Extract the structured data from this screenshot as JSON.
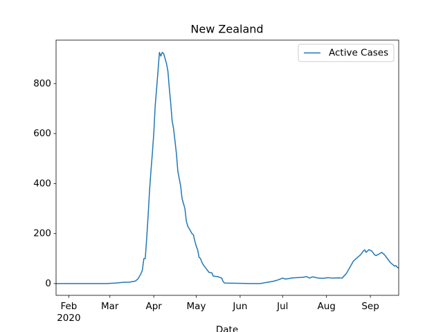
{
  "chart_data": {
    "type": "line",
    "title": "New Zealand",
    "xlabel": "Date",
    "x": [
      "2020-01-23",
      "2020-02-01",
      "2020-02-15",
      "2020-02-29",
      "2020-03-01",
      "2020-03-05",
      "2020-03-10",
      "2020-03-15",
      "2020-03-19",
      "2020-03-21",
      "2020-03-23",
      "2020-03-24",
      "2020-03-25",
      "2020-03-26",
      "2020-03-27",
      "2020-03-28",
      "2020-03-29",
      "2020-03-30",
      "2020-03-31",
      "2020-04-01",
      "2020-04-02",
      "2020-04-03",
      "2020-04-04",
      "2020-04-05",
      "2020-04-06",
      "2020-04-07",
      "2020-04-08",
      "2020-04-09",
      "2020-04-10",
      "2020-04-11",
      "2020-04-12",
      "2020-04-13",
      "2020-04-14",
      "2020-04-15",
      "2020-04-16",
      "2020-04-17",
      "2020-04-18",
      "2020-04-19",
      "2020-04-20",
      "2020-04-21",
      "2020-04-22",
      "2020-04-23",
      "2020-04-24",
      "2020-04-25",
      "2020-04-27",
      "2020-04-28",
      "2020-04-29",
      "2020-04-30",
      "2020-05-01",
      "2020-05-02",
      "2020-05-03",
      "2020-05-04",
      "2020-05-05",
      "2020-05-06",
      "2020-05-08",
      "2020-05-10",
      "2020-05-12",
      "2020-05-13",
      "2020-05-16",
      "2020-05-19",
      "2020-05-20",
      "2020-05-21",
      "2020-06-01",
      "2020-06-08",
      "2020-06-15",
      "2020-06-20",
      "2020-06-25",
      "2020-06-28",
      "2020-07-01",
      "2020-07-03",
      "2020-07-08",
      "2020-07-15",
      "2020-07-18",
      "2020-07-20",
      "2020-07-22",
      "2020-07-24",
      "2020-07-26",
      "2020-07-30",
      "2020-08-02",
      "2020-08-05",
      "2020-08-10",
      "2020-08-12",
      "2020-08-15",
      "2020-08-18",
      "2020-08-20",
      "2020-08-22",
      "2020-08-25",
      "2020-08-27",
      "2020-08-28",
      "2020-08-29",
      "2020-08-31",
      "2020-09-02",
      "2020-09-04",
      "2020-09-05",
      "2020-09-07",
      "2020-09-09",
      "2020-09-11",
      "2020-09-13",
      "2020-09-15",
      "2020-09-17",
      "2020-09-18",
      "2020-09-19",
      "2020-09-20",
      "2020-09-21"
    ],
    "series": [
      {
        "name": "Active Cases",
        "color": "#1f77b4",
        "values": [
          0,
          0,
          0,
          0,
          1,
          2,
          5,
          6,
          10,
          20,
          40,
          55,
          100,
          100,
          180,
          270,
          370,
          450,
          520,
          600,
          710,
          780,
          850,
          925,
          910,
          925,
          920,
          900,
          880,
          850,
          780,
          720,
          650,
          620,
          570,
          520,
          450,
          420,
          390,
          340,
          320,
          300,
          250,
          230,
          210,
          200,
          195,
          170,
          150,
          135,
          105,
          100,
          85,
          75,
          60,
          45,
          43,
          30,
          28,
          22,
          8,
          2,
          1,
          0,
          0,
          5,
          10,
          15,
          22,
          18,
          23,
          25,
          28,
          22,
          27,
          25,
          22,
          21,
          24,
          22,
          23,
          22,
          40,
          70,
          90,
          100,
          115,
          130,
          135,
          125,
          136,
          130,
          115,
          112,
          118,
          125,
          115,
          100,
          85,
          75,
          70,
          72,
          65,
          62
        ]
      }
    ],
    "xlim": [
      "2020-01-23",
      "2020-09-21"
    ],
    "xticks": [
      {
        "value": "2020-02-01",
        "label": "Feb"
      },
      {
        "value": "2020-03-01",
        "label": "Mar"
      },
      {
        "value": "2020-04-01",
        "label": "Apr"
      },
      {
        "value": "2020-05-01",
        "label": "May"
      },
      {
        "value": "2020-06-01",
        "label": "Jun"
      },
      {
        "value": "2020-07-01",
        "label": "Jul"
      },
      {
        "value": "2020-08-01",
        "label": "Aug"
      },
      {
        "value": "2020-09-01",
        "label": "Sep"
      }
    ],
    "xtick_year": "2020",
    "ylim": [
      -47,
      974
    ],
    "yticks": [
      0,
      200,
      400,
      600,
      800
    ],
    "grid": false,
    "legend": "upper right"
  }
}
